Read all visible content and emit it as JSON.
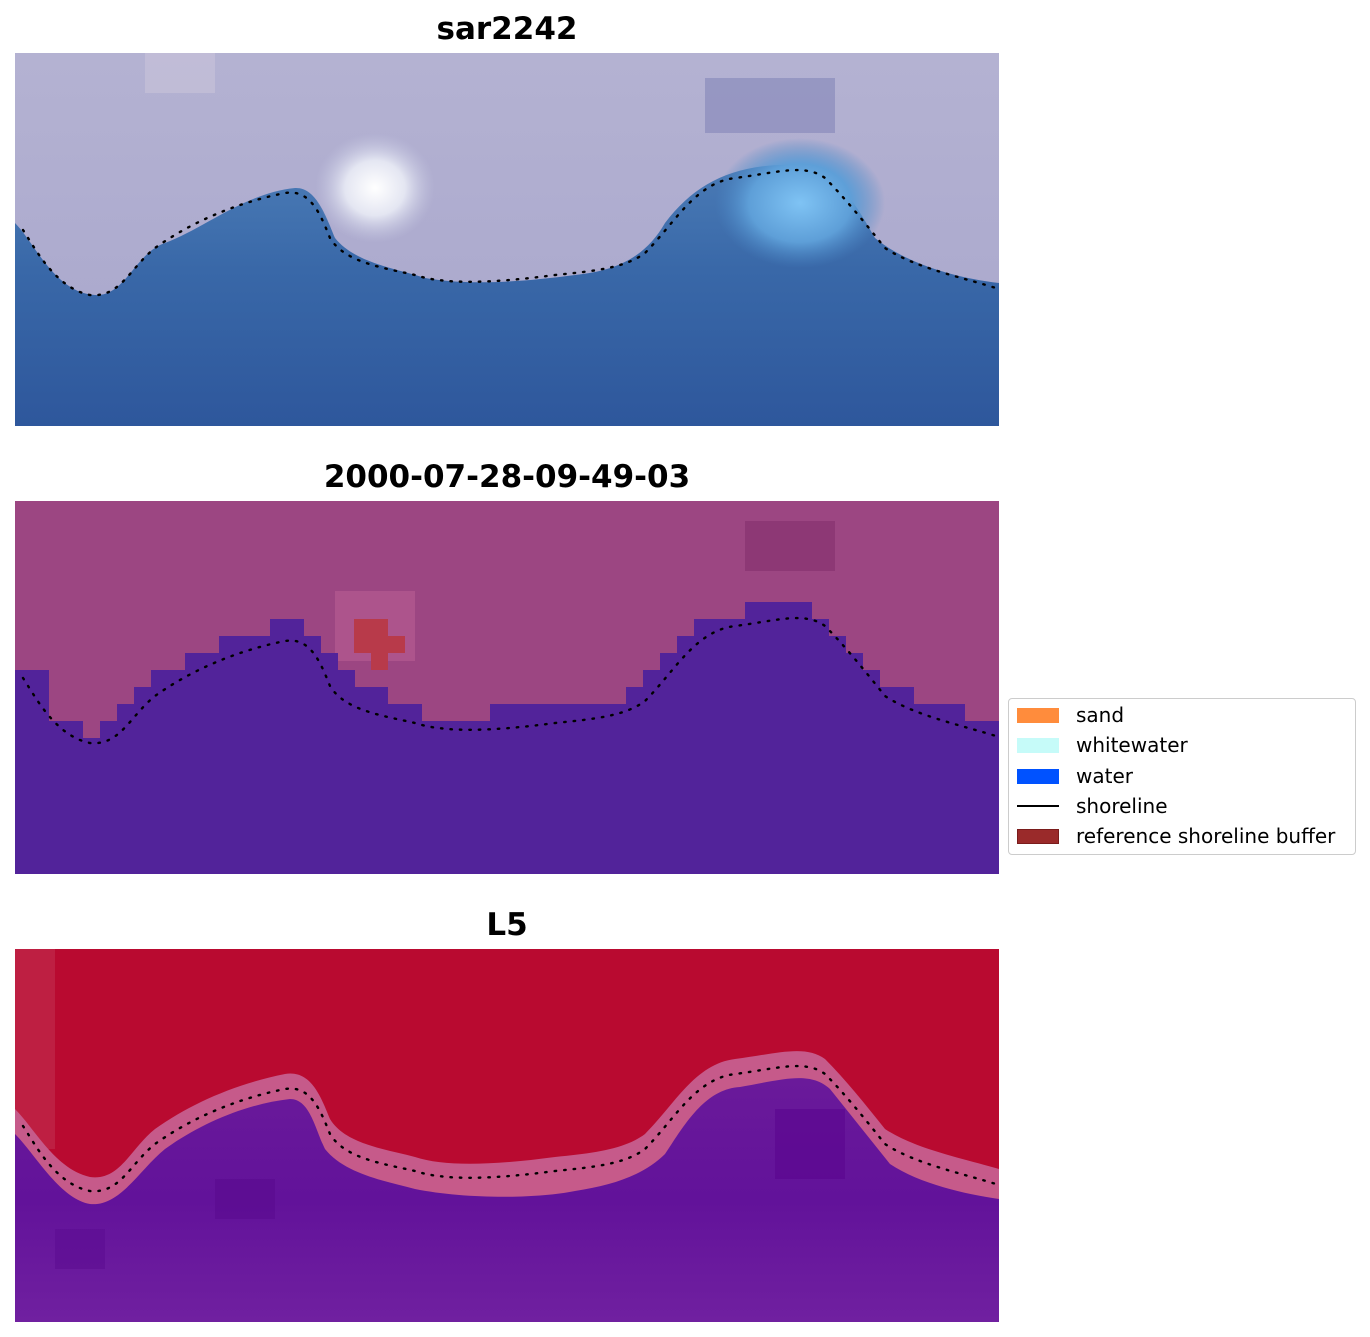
{
  "panels": [
    {
      "id": "rgb",
      "title": "sar2242"
    },
    {
      "id": "classified",
      "title": "2000-07-28-09-49-03"
    },
    {
      "id": "mndwi",
      "title": "L5"
    }
  ],
  "legend": {
    "items": [
      {
        "label": "sand",
        "color": "#ff8c3c",
        "kind": "patch"
      },
      {
        "label": "whitewater",
        "color": "#c6fbf9",
        "kind": "patch"
      },
      {
        "label": "water",
        "color": "#0052ff",
        "kind": "patch"
      },
      {
        "label": "shoreline",
        "color": "#000000",
        "kind": "line"
      },
      {
        "label": "reference shoreline buffer",
        "color": "#9a2a2a",
        "kind": "patch"
      }
    ]
  },
  "colors": {
    "land_tint": "#a9a9ce",
    "water_rgb": "#2f5f9f",
    "land_class": "#9a4580",
    "water_class": "#52229a",
    "buffer_class": "#b93a4a",
    "index_high": "#b8062e",
    "index_low": "#6f1a98"
  }
}
